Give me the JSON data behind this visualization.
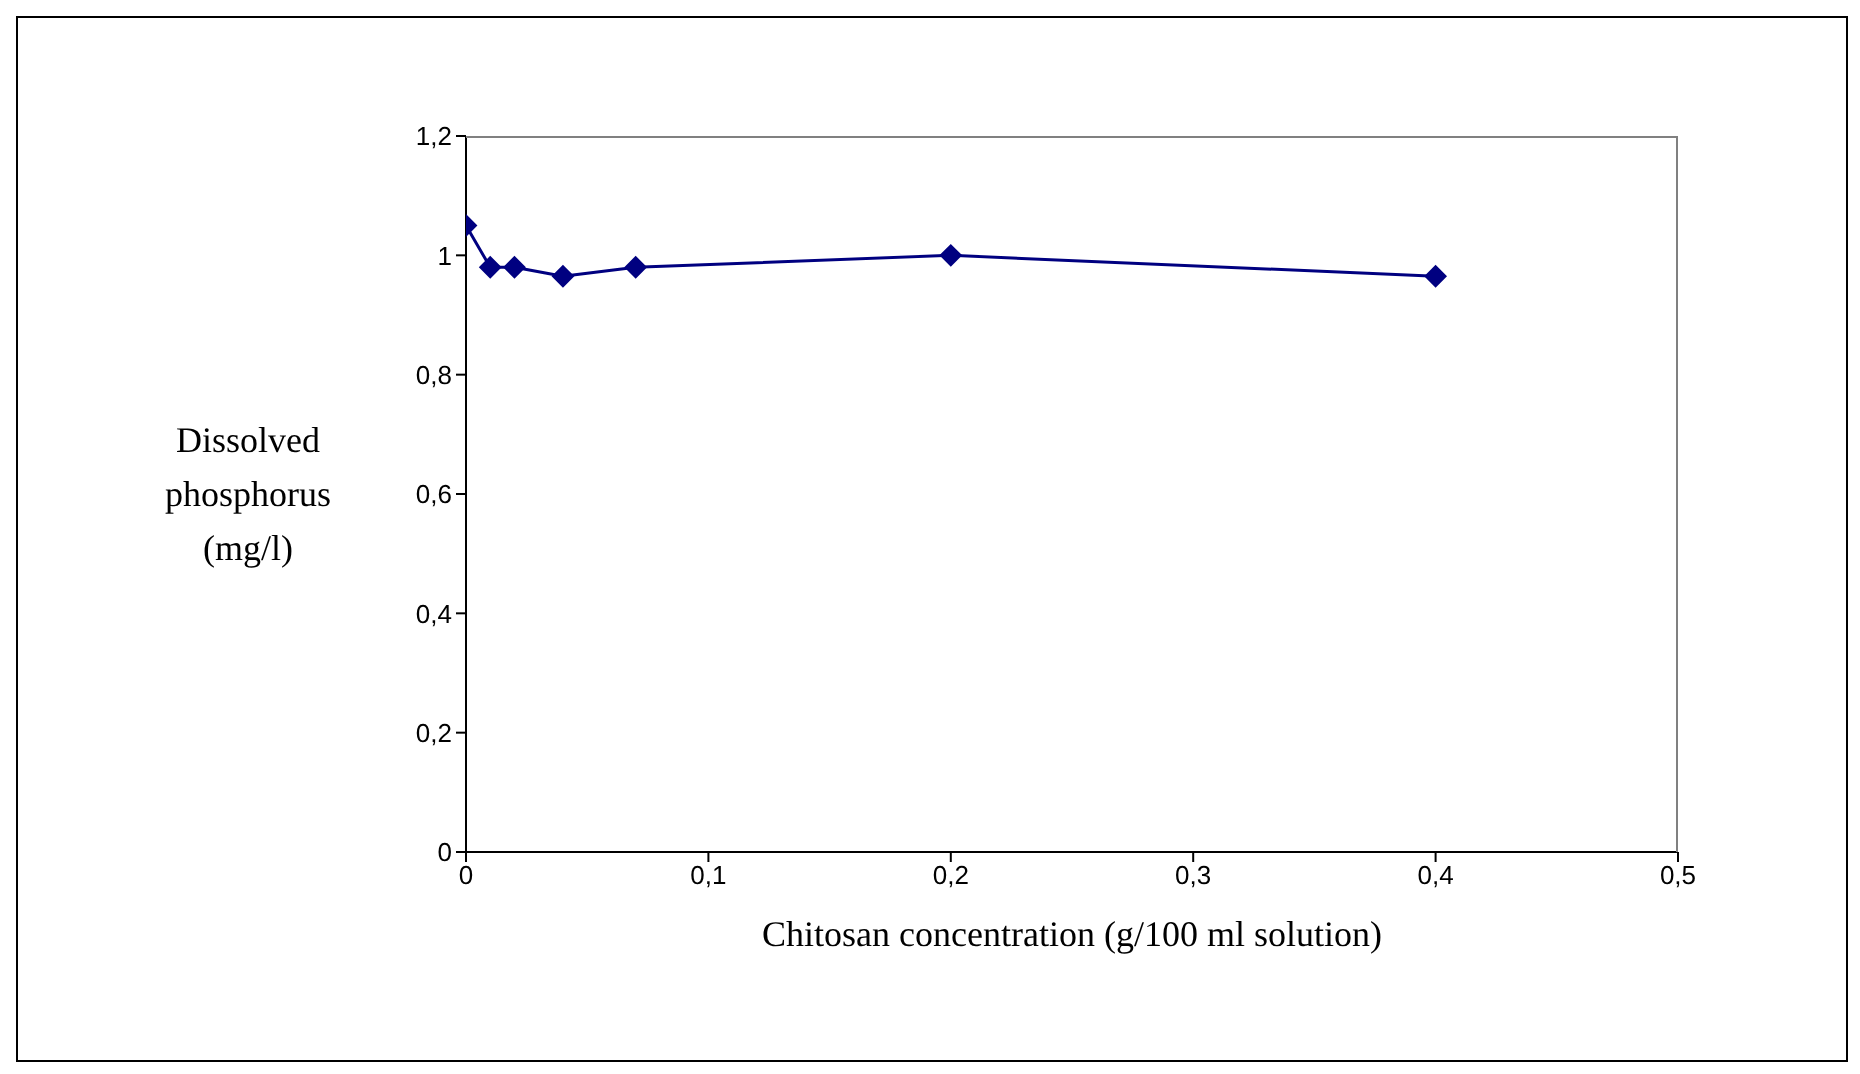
{
  "chart_data": {
    "type": "line",
    "xlabel": "Chitosan concentration (g/100 ml solution)",
    "ylabel": "Dissolved phosphorus (mg/l)",
    "x": [
      0,
      0.01,
      0.02,
      0.04,
      0.07,
      0.2,
      0.4
    ],
    "series": [
      {
        "color": "#000080",
        "values": [
          1.05,
          0.98,
          0.98,
          0.965,
          0.98,
          1.0,
          0.965
        ]
      }
    ],
    "xlim": [
      0,
      0.5
    ],
    "xticks": [
      {
        "value": 0,
        "label": "0"
      },
      {
        "value": 0.1,
        "label": "0,1"
      },
      {
        "value": 0.2,
        "label": "0,2"
      },
      {
        "value": 0.3,
        "label": "0,3"
      },
      {
        "value": 0.4,
        "label": "0,4"
      },
      {
        "value": 0.5,
        "label": "0,5"
      }
    ],
    "ylim": [
      0,
      1.2
    ],
    "yticks": [
      {
        "value": 0,
        "label": "0"
      },
      {
        "value": 0.2,
        "label": "0,2"
      },
      {
        "value": 0.4,
        "label": "0,4"
      },
      {
        "value": 0.6,
        "label": "0,6"
      },
      {
        "value": 0.8,
        "label": "0,8"
      },
      {
        "value": 1,
        "label": "1"
      },
      {
        "value": 1.2,
        "label": "1,2"
      }
    ],
    "grid": false,
    "legend": false,
    "marker": "diamond",
    "line_style": "solid"
  }
}
